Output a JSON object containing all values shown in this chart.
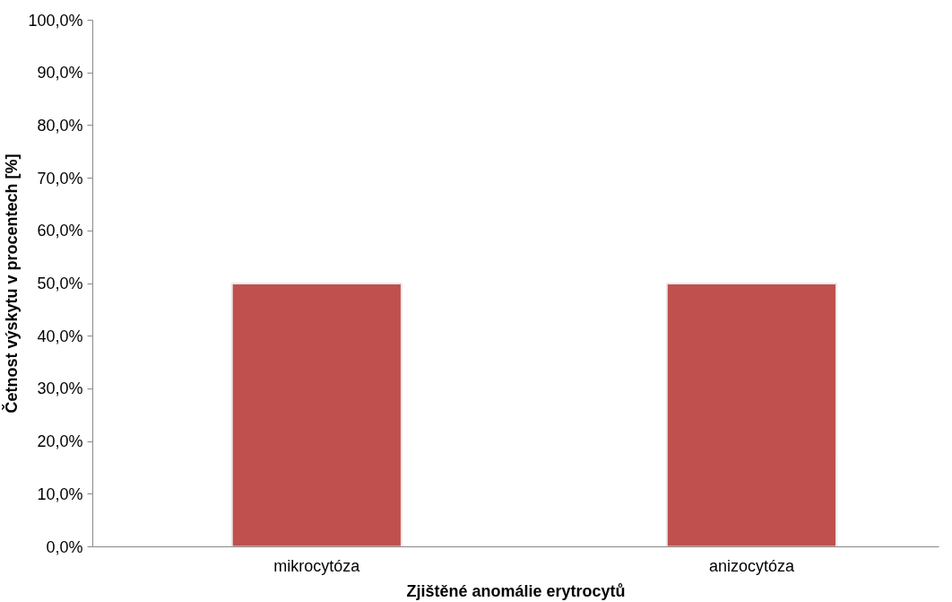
{
  "chart_data": {
    "type": "bar",
    "xlabel": "Zjištěné anomálie erytrocytů",
    "ylabel": "Četnost výskytu v procentech [%]",
    "categories": [
      "mikrocytóza",
      "anizocytóza"
    ],
    "values": [
      50,
      50
    ],
    "color": "#c0504d",
    "ylim": [
      0,
      100
    ],
    "yticks": [
      {
        "value": 0,
        "label": "0,0%"
      },
      {
        "value": 10,
        "label": "10,0%"
      },
      {
        "value": 20,
        "label": "20,0%"
      },
      {
        "value": 30,
        "label": "30,0%"
      },
      {
        "value": 40,
        "label": "40,0%"
      },
      {
        "value": 50,
        "label": "50,0%"
      },
      {
        "value": 60,
        "label": "60,0%"
      },
      {
        "value": 70,
        "label": "70,0%"
      },
      {
        "value": 80,
        "label": "80,0%"
      },
      {
        "value": 90,
        "label": "90,0%"
      },
      {
        "value": 100,
        "label": "100,0%"
      }
    ],
    "grid": false
  }
}
